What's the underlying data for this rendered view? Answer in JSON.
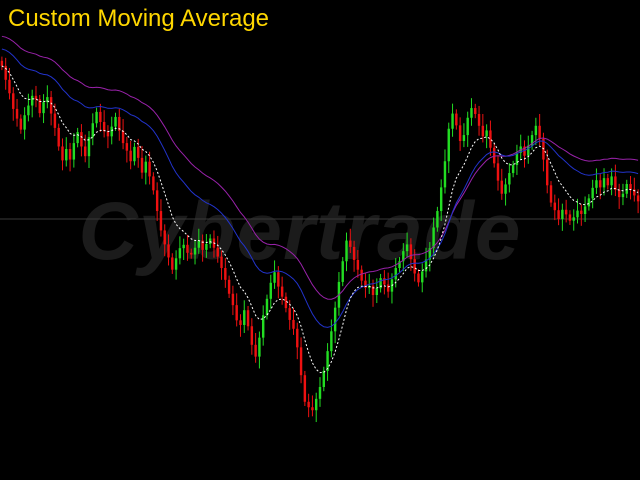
{
  "title": "Custom Moving Average",
  "watermark": "Cybertrade",
  "colors": {
    "background": "#000000",
    "title": "#ffd700",
    "bull": "#22dd22",
    "bear": "#ee1111",
    "ma_fast": "#ffffff",
    "ma_mid": "#2233cc",
    "ma_slow": "#9922aa",
    "crosshair": "#3a3a3a",
    "watermark": "#1b1b1b"
  },
  "chart_data": {
    "type": "candlestick",
    "y_axis_visible": false,
    "x_axis_visible": false,
    "ylim": [
      0,
      100
    ],
    "closes": [
      91.5,
      88.2,
      85.0,
      81.3,
      79.0,
      76.4,
      79.8,
      82.1,
      84.4,
      83.6,
      80.3,
      82.9,
      84.1,
      80.2,
      76.8,
      72.4,
      69.1,
      71.8,
      69.3,
      73.2,
      75.8,
      72.4,
      70.1,
      74.6,
      77.9,
      80.6,
      78.2,
      76.0,
      74.8,
      77.1,
      79.4,
      76.1,
      73.2,
      71.4,
      68.9,
      72.3,
      69.7,
      66.2,
      68.8,
      65.3,
      62.0,
      57.1,
      52.5,
      49.2,
      46.1,
      43.2,
      45.9,
      48.3,
      49.1,
      47.2,
      46.8,
      48.4,
      50.1,
      47.9,
      49.3,
      50.6,
      48.4,
      46.3,
      43.6,
      40.8,
      37.5,
      34.8,
      31.2,
      30.1,
      33.6,
      29.8,
      25.4,
      22.6,
      27.1,
      32.4,
      36.3,
      40.1,
      42.6,
      39.2,
      36.8,
      34.1,
      31.3,
      29.2,
      24.8,
      18.2,
      11.9,
      10.6,
      9.9,
      12.6,
      15.4,
      19.2,
      23.9,
      28.6,
      34.2,
      40.3,
      45.2,
      50.1,
      48.6,
      45.5,
      43.2,
      40.6,
      38.9,
      39.4,
      37.2,
      38.8,
      41.2,
      39.7,
      38.0,
      40.9,
      43.6,
      45.2,
      47.6,
      49.2,
      45.7,
      42.3,
      40.2,
      42.8,
      45.6,
      48.3,
      53.2,
      57.1,
      62.7,
      68.9,
      76.6,
      80.2,
      77.4,
      73.7,
      75.1,
      79.2,
      81.5,
      80.1,
      77.3,
      74.8,
      76.2,
      72.1,
      68.4,
      64.3,
      61.2,
      63.4,
      66.1,
      68.0,
      70.9,
      72.4,
      70.2,
      72.6,
      75.1,
      77.3,
      74.2,
      69.3,
      63.2,
      59.1,
      57.3,
      55.2,
      57.4,
      56.3,
      54.8,
      55.6,
      57.2,
      56.4,
      58.2,
      60.1,
      62.6,
      64.4,
      62.7,
      64.9,
      63.2,
      65.3,
      62.1,
      60.4,
      61.2,
      63.5,
      62.2,
      60.8,
      59.4
    ],
    "overlays": [
      {
        "type": "moving_average",
        "style": "dashed",
        "color_key": "ma_fast"
      },
      {
        "type": "moving_average",
        "style": "solid",
        "color_key": "ma_mid"
      },
      {
        "type": "moving_average",
        "style": "solid",
        "color_key": "ma_slow"
      }
    ]
  }
}
